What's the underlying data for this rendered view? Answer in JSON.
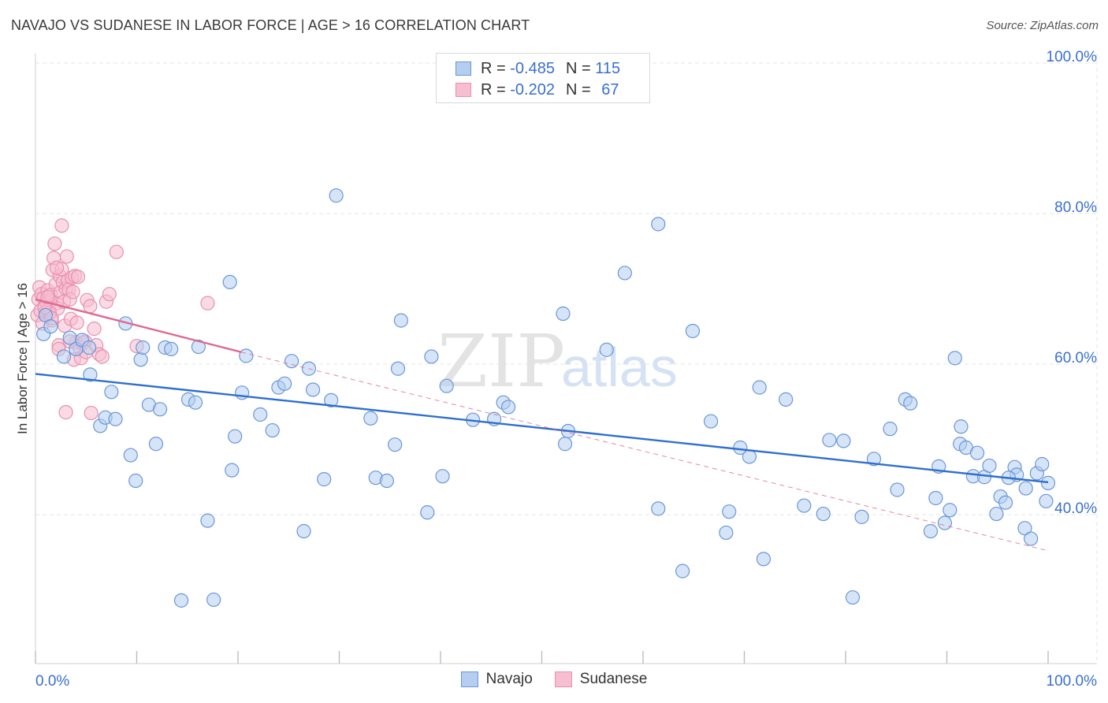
{
  "title": "NAVAJO VS SUDANESE IN LABOR FORCE | AGE > 16 CORRELATION CHART",
  "source": "Source: ZipAtlas.com",
  "watermark": {
    "zip": "ZIP",
    "atlas": "atlas"
  },
  "legend_box": {
    "rows": [
      {
        "r_label": "R =",
        "r_value": "-0.485",
        "n_label": "N =",
        "n_value": "115"
      },
      {
        "r_label": "R =",
        "r_value": "-0.202",
        "n_label": "N =",
        "n_value": "67"
      }
    ]
  },
  "bottom_legend": [
    "Navajo",
    "Sudanese"
  ],
  "colors": {
    "navajo_fill": "#b4cdf0",
    "navajo_stroke": "#6a97d8",
    "navajo_line": "#2e6fd0",
    "sudanese_fill": "#f6bed0",
    "sudanese_stroke": "#e890ad",
    "sudanese_line": "#e0688f",
    "grid": "#e6e6e6",
    "axis_label": "#3a6fd0"
  },
  "chart_data": {
    "type": "scatter",
    "title": "NAVAJO VS SUDANESE IN LABOR FORCE | AGE > 16 CORRELATION CHART",
    "xlabel": "",
    "ylabel": "In Labor Force | Age > 16",
    "xlim": [
      0,
      100
    ],
    "ylim": [
      20,
      100
    ],
    "x_tick_labels": [
      "0.0%",
      "100.0%"
    ],
    "y_ticks": [
      40,
      60,
      80,
      100
    ],
    "y_tick_labels": [
      "40.0%",
      "60.0%",
      "80.0%",
      "100.0%"
    ],
    "grid": true,
    "legend_position": "top-center",
    "series": [
      {
        "name": "Navajo",
        "r": -0.485,
        "n": 115,
        "trend": {
          "x": [
            0,
            100
          ],
          "y": [
            58.7,
            44.3
          ]
        },
        "points": [
          [
            0.8,
            64.0
          ],
          [
            1.0,
            66.5
          ],
          [
            1.5,
            65.0
          ],
          [
            2.8,
            61.0
          ],
          [
            3.4,
            63.5
          ],
          [
            4.0,
            62.0
          ],
          [
            4.6,
            63.2
          ],
          [
            5.3,
            62.2
          ],
          [
            5.4,
            58.6
          ],
          [
            6.4,
            51.8
          ],
          [
            6.9,
            52.9
          ],
          [
            7.5,
            56.3
          ],
          [
            7.9,
            52.7
          ],
          [
            8.9,
            65.4
          ],
          [
            9.4,
            47.9
          ],
          [
            9.9,
            44.5
          ],
          [
            10.4,
            60.6
          ],
          [
            10.6,
            62.2
          ],
          [
            11.2,
            54.6
          ],
          [
            11.9,
            49.4
          ],
          [
            12.3,
            54.0
          ],
          [
            12.8,
            62.2
          ],
          [
            13.4,
            62.0
          ],
          [
            14.4,
            28.6
          ],
          [
            15.1,
            55.3
          ],
          [
            15.8,
            54.9
          ],
          [
            16.1,
            62.3
          ],
          [
            17.0,
            39.2
          ],
          [
            17.6,
            28.7
          ],
          [
            19.2,
            70.9
          ],
          [
            19.4,
            45.9
          ],
          [
            19.7,
            50.4
          ],
          [
            20.4,
            56.2
          ],
          [
            20.8,
            61.1
          ],
          [
            22.2,
            53.3
          ],
          [
            23.4,
            51.2
          ],
          [
            24.0,
            56.9
          ],
          [
            24.6,
            57.4
          ],
          [
            25.3,
            60.4
          ],
          [
            26.5,
            37.8
          ],
          [
            27.0,
            59.4
          ],
          [
            27.4,
            56.6
          ],
          [
            28.5,
            44.7
          ],
          [
            29.2,
            55.2
          ],
          [
            29.7,
            82.4
          ],
          [
            33.1,
            52.8
          ],
          [
            33.6,
            44.9
          ],
          [
            34.7,
            44.5
          ],
          [
            35.5,
            49.3
          ],
          [
            35.8,
            59.4
          ],
          [
            36.1,
            65.8
          ],
          [
            38.7,
            40.3
          ],
          [
            39.1,
            61.0
          ],
          [
            40.2,
            45.1
          ],
          [
            40.6,
            57.1
          ],
          [
            43.2,
            52.6
          ],
          [
            45.3,
            52.7
          ],
          [
            46.2,
            54.9
          ],
          [
            46.7,
            54.3
          ],
          [
            52.3,
            49.4
          ],
          [
            52.6,
            51.1
          ],
          [
            52.1,
            66.7
          ],
          [
            56.4,
            61.9
          ],
          [
            58.2,
            72.1
          ],
          [
            61.5,
            78.6
          ],
          [
            61.5,
            40.8
          ],
          [
            63.9,
            32.5
          ],
          [
            64.9,
            64.4
          ],
          [
            66.7,
            52.4
          ],
          [
            68.2,
            37.6
          ],
          [
            68.5,
            40.4
          ],
          [
            69.6,
            48.9
          ],
          [
            70.5,
            47.7
          ],
          [
            71.5,
            56.9
          ],
          [
            71.9,
            34.1
          ],
          [
            74.1,
            55.3
          ],
          [
            75.9,
            41.2
          ],
          [
            77.8,
            40.1
          ],
          [
            78.4,
            49.9
          ],
          [
            79.8,
            49.8
          ],
          [
            80.7,
            29.0
          ],
          [
            81.6,
            39.7
          ],
          [
            82.8,
            47.4
          ],
          [
            84.4,
            51.4
          ],
          [
            85.1,
            43.3
          ],
          [
            85.9,
            55.3
          ],
          [
            86.4,
            54.8
          ],
          [
            88.4,
            37.8
          ],
          [
            88.9,
            42.2
          ],
          [
            89.2,
            46.4
          ],
          [
            89.8,
            38.9
          ],
          [
            90.3,
            40.6
          ],
          [
            90.8,
            60.8
          ],
          [
            91.4,
            51.7
          ],
          [
            91.3,
            49.4
          ],
          [
            91.9,
            48.9
          ],
          [
            92.6,
            45.1
          ],
          [
            93.0,
            48.2
          ],
          [
            93.7,
            45.0
          ],
          [
            94.2,
            46.5
          ],
          [
            94.9,
            40.1
          ],
          [
            95.3,
            42.4
          ],
          [
            95.8,
            41.6
          ],
          [
            96.7,
            46.3
          ],
          [
            96.9,
            45.3
          ],
          [
            97.7,
            38.2
          ],
          [
            98.3,
            36.8
          ],
          [
            98.9,
            45.5
          ],
          [
            99.4,
            46.7
          ],
          [
            99.8,
            41.8
          ],
          [
            100.0,
            44.2
          ],
          [
            97.8,
            43.5
          ],
          [
            96.1,
            44.9
          ]
        ]
      },
      {
        "name": "Sudanese",
        "r": -0.202,
        "n": 67,
        "trend_solid": {
          "x": [
            0,
            20.3
          ],
          "y": [
            68.6,
            61.6
          ]
        },
        "trend_dashed": {
          "x": [
            20.3,
            100
          ],
          "y": [
            61.6,
            35.2
          ]
        },
        "points": [
          [
            0.2,
            66.5
          ],
          [
            0.3,
            68.6
          ],
          [
            0.4,
            70.2
          ],
          [
            0.5,
            67.1
          ],
          [
            0.6,
            69.3
          ],
          [
            0.7,
            65.4
          ],
          [
            0.8,
            68.8
          ],
          [
            0.9,
            67.6
          ],
          [
            1.0,
            66.9
          ],
          [
            1.1,
            68.2
          ],
          [
            1.2,
            69.8
          ],
          [
            1.3,
            67.3
          ],
          [
            1.4,
            68.4
          ],
          [
            1.5,
            69.2
          ],
          [
            1.6,
            65.8
          ],
          [
            1.7,
            72.5
          ],
          [
            1.8,
            74.1
          ],
          [
            1.9,
            76.0
          ],
          [
            2.0,
            70.6
          ],
          [
            2.1,
            68.1
          ],
          [
            2.2,
            67.4
          ],
          [
            2.3,
            62.5
          ],
          [
            2.4,
            71.7
          ],
          [
            2.5,
            69.6
          ],
          [
            2.6,
            72.6
          ],
          [
            2.7,
            70.9
          ],
          [
            2.8,
            68.3
          ],
          [
            2.9,
            65.1
          ],
          [
            3.0,
            70.0
          ],
          [
            3.1,
            74.3
          ],
          [
            3.2,
            71.1
          ],
          [
            3.3,
            69.9
          ],
          [
            3.4,
            68.6
          ],
          [
            3.5,
            66.0
          ],
          [
            3.6,
            71.5
          ],
          [
            3.7,
            69.6
          ],
          [
            3.8,
            60.6
          ],
          [
            3.9,
            71.7
          ],
          [
            4.0,
            62.9
          ],
          [
            4.2,
            71.6
          ],
          [
            4.3,
            62.3
          ],
          [
            4.5,
            60.8
          ],
          [
            4.7,
            62.8
          ],
          [
            4.9,
            63.0
          ],
          [
            5.0,
            61.6
          ],
          [
            5.1,
            68.5
          ],
          [
            5.4,
            67.7
          ],
          [
            5.5,
            53.5
          ],
          [
            5.8,
            64.7
          ],
          [
            6.0,
            62.5
          ],
          [
            6.3,
            61.3
          ],
          [
            6.6,
            61.0
          ],
          [
            7.0,
            68.3
          ],
          [
            7.3,
            69.3
          ],
          [
            8.0,
            74.9
          ],
          [
            10.0,
            62.4
          ],
          [
            17.0,
            68.1
          ],
          [
            1.4,
            66.8
          ],
          [
            2.1,
            72.8
          ],
          [
            3.0,
            53.6
          ],
          [
            2.6,
            78.4
          ],
          [
            0.9,
            67.5
          ],
          [
            1.6,
            66.1
          ],
          [
            2.3,
            62.0
          ],
          [
            4.1,
            65.5
          ],
          [
            3.4,
            63.0
          ],
          [
            1.2,
            68.9
          ]
        ]
      }
    ]
  }
}
